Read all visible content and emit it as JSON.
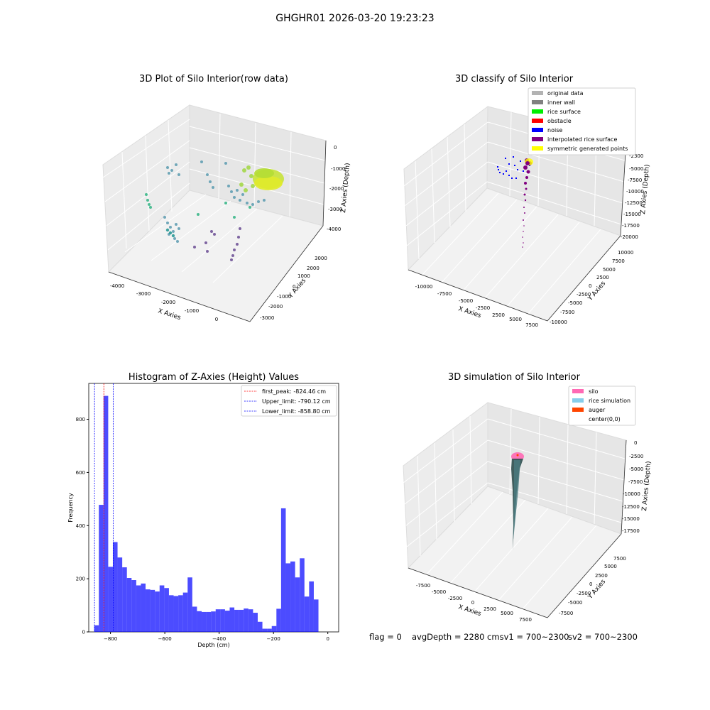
{
  "figure": {
    "suptitle": "GHGHR01 2026-03-20 19:23:23"
  },
  "panels": {
    "raw": {
      "title": "3D Plot of Silo Interior(row data)",
      "xlabel": "X Axies",
      "ylabel": "Y Axies",
      "zlabel": "Z Axies (Depth)",
      "xticks": [
        "-4000",
        "-3000",
        "-2000",
        "-1000",
        "0"
      ],
      "yticks": [
        "3000",
        "2000",
        "1000",
        "0",
        "-1000",
        "-2000",
        "-3000"
      ],
      "zticks": [
        "0",
        "-1000",
        "-2000",
        "-3000",
        "-4000"
      ]
    },
    "classify": {
      "title": "3D classify of Silo Interior",
      "xlabel": "X Axies",
      "ylabel": "Y Axies",
      "zlabel": "Z Axies (Depth)",
      "xticks": [
        "-10000",
        "-7500",
        "-5000",
        "-2500",
        "0",
        "2500",
        "5000",
        "7500"
      ],
      "yticks": [
        "10000",
        "7500",
        "5000",
        "2500",
        "0",
        "-2500",
        "-5000",
        "-7500",
        "-10000"
      ],
      "zticks": [
        "-2300",
        "-5000",
        "-7500",
        "-10000",
        "-12500",
        "-15000",
        "-17500",
        "-20000"
      ],
      "legend": [
        {
          "label": "original data",
          "color": "#b3b3b3"
        },
        {
          "label": "inner wall",
          "color": "#808080"
        },
        {
          "label": "rice surface",
          "color": "#00ee00"
        },
        {
          "label": "obstacle",
          "color": "#ff0000"
        },
        {
          "label": "noise",
          "color": "#0000ff"
        },
        {
          "label": "interpolated rice surface",
          "color": "#800080"
        },
        {
          "label": "symmetric generated points",
          "color": "#ffff00"
        }
      ]
    },
    "simulation": {
      "title": "3D simulation of Silo Interior",
      "xlabel": "X Axies",
      "ylabel": "Y Axies",
      "zlabel": "Z Axies (Depth)",
      "xticks": [
        "-7500",
        "-5000",
        "-2500",
        "0",
        "2500",
        "5000",
        "7500"
      ],
      "yticks": [
        "7500",
        "5000",
        "2500",
        "0",
        "-2500",
        "-5000",
        "-7500"
      ],
      "zticks": [
        "0",
        "-2500",
        "-5000",
        "-7500",
        "-10000",
        "-12500",
        "-15000",
        "-17500"
      ],
      "legend": [
        {
          "label": "silo",
          "color": "#ff69b4"
        },
        {
          "label": "rice simulation",
          "color": "#87ceeb"
        },
        {
          "label": "auger",
          "color": "#ff4500"
        },
        {
          "label": "center(0,0)",
          "color": "#ffffff"
        }
      ]
    }
  },
  "footer": {
    "flag": "flag = 0",
    "avg": "avgDepth = 2280 cmsv1 = 700~2300",
    "sv2": "sv2 = 700~2300"
  },
  "chart_data": {
    "type": "bar",
    "title": "Histogram of Z-Axies (Height) Values",
    "xlabel": "Depth (cm)",
    "ylabel": "Frequency",
    "xlim": [
      -880,
      40
    ],
    "ylim": [
      0,
      935
    ],
    "xticks": [
      -800,
      -600,
      -400,
      -200,
      0
    ],
    "yticks": [
      0,
      200,
      400,
      600,
      800
    ],
    "bin_start": -860,
    "bin_width": 17.2,
    "color": "#0000ff",
    "values": [
      25,
      478,
      888,
      245,
      338,
      280,
      243,
      203,
      195,
      175,
      182,
      160,
      158,
      152,
      175,
      165,
      138,
      135,
      138,
      148,
      205,
      95,
      78,
      75,
      75,
      77,
      85,
      85,
      80,
      92,
      83,
      83,
      88,
      85,
      72,
      38,
      12,
      12,
      22,
      87,
      465,
      258,
      265,
      205,
      277,
      133,
      190,
      122
    ],
    "lines": [
      {
        "label": "first_peak: -824.46 cm",
        "x": -824.46,
        "color": "#ff0000"
      },
      {
        "label": "Upper_limit: -790.12 cm",
        "x": -790.12,
        "color": "#0000ff"
      },
      {
        "label": "Lower_limit: -858.80 cm",
        "x": -858.8,
        "color": "#0000ff"
      }
    ]
  }
}
